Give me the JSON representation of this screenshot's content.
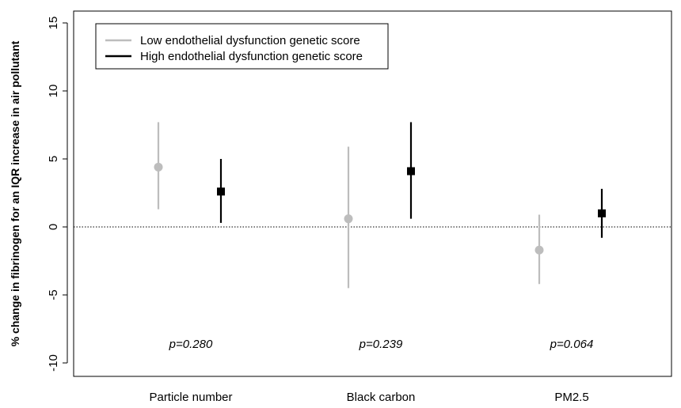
{
  "chart_data": {
    "type": "scatter",
    "title": "",
    "xlabel": "",
    "ylabel": "% change in fibrinogen for an IQR increase in air pollutant",
    "ylim": [
      -11,
      16
    ],
    "yticks": [
      -10,
      -5,
      0,
      5,
      10,
      15
    ],
    "ytick_labels": [
      "-10",
      "-5",
      "0",
      "5",
      "10",
      "15"
    ],
    "categories": [
      "Particle number",
      "Black carbon",
      "PM2.5"
    ],
    "reference_line": 0,
    "legend_position": "top-left",
    "series": [
      {
        "name": "Low endothelial dysfunction genetic score",
        "color": "#bdbdbd",
        "marker": "circle",
        "values": [
          4.4,
          0.6,
          -1.7
        ],
        "lower": [
          1.3,
          -4.5,
          -4.2
        ],
        "upper": [
          7.7,
          5.9,
          0.9
        ]
      },
      {
        "name": "High endothelial dysfunction genetic score",
        "color": "#000000",
        "marker": "square",
        "values": [
          2.6,
          4.1,
          1.0
        ],
        "lower": [
          0.3,
          0.6,
          -0.8
        ],
        "upper": [
          5.0,
          7.7,
          2.8
        ]
      }
    ],
    "pvalues": [
      "p=0.280",
      "p=0.239",
      "p=0.064"
    ],
    "pvalue_y": -8.6
  }
}
